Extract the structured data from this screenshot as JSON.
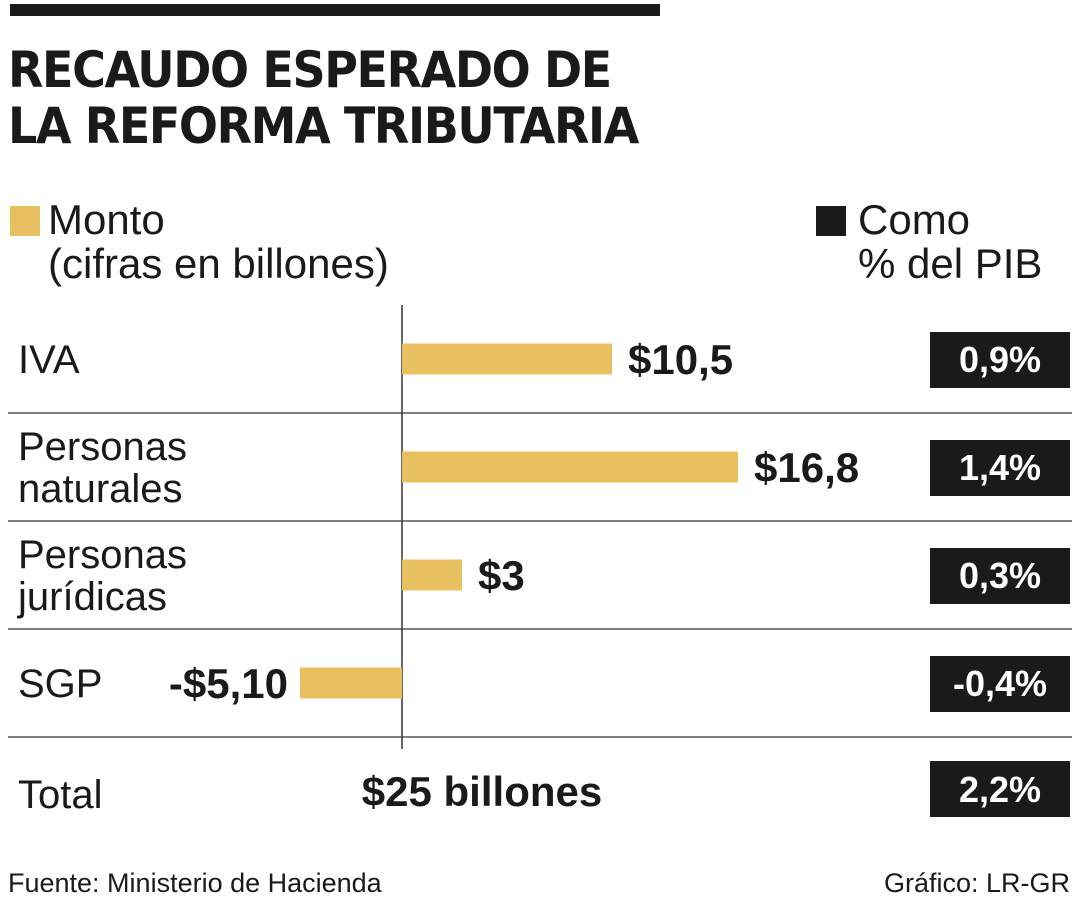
{
  "title_line1": "RECAUDO ESPERADO DE",
  "title_line2": "LA REFORMA TRIBUTARIA",
  "legend": {
    "monto_line1": "Monto",
    "monto_line2": "(cifras en billones)",
    "pib_line1": "Como",
    "pib_line2": "% del PIB"
  },
  "colors": {
    "bar": "#e8c060",
    "dark": "#1a1a1a",
    "grid": "#333333"
  },
  "chart_data": {
    "type": "bar",
    "orientation": "horizontal",
    "categories": [
      [
        "IVA"
      ],
      [
        "Personas",
        "naturales"
      ],
      [
        "Personas",
        "jurídicas"
      ],
      [
        "SGP"
      ]
    ],
    "series": [
      {
        "values": [
          10.5,
          16.8,
          3,
          -5.1
        ],
        "labels": [
          "$10,5",
          "$16,8",
          "$3",
          "-$5,10"
        ]
      }
    ],
    "pct_pib": [
      "0,9%",
      "1,4%",
      "0,3%",
      "-0,4%"
    ],
    "xlim": [
      -6.5,
      22
    ]
  },
  "total": {
    "label": "Total",
    "value": "$25 billones",
    "pct": "2,2%"
  },
  "source": "Fuente: Ministerio de Hacienda",
  "credit": "Gráfico: LR-GR"
}
